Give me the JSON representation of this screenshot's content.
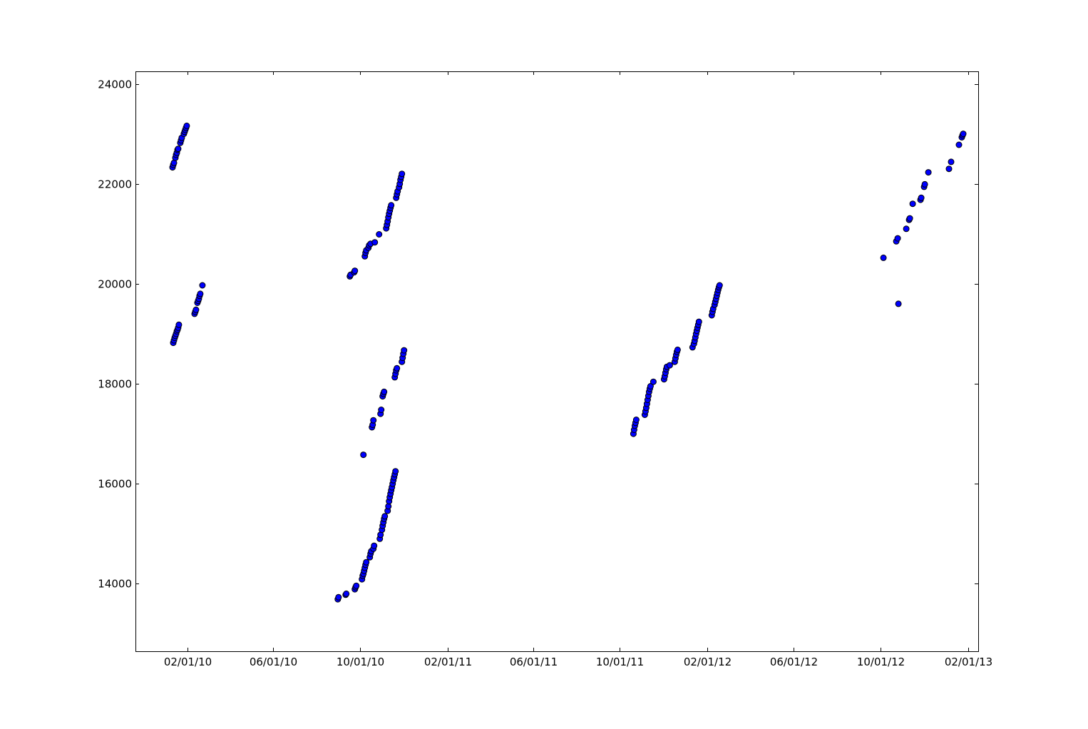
{
  "colors": {
    "marker_fill": "#0000ff",
    "marker_edge": "#000000",
    "axes": "#000000",
    "background": "#ffffff"
  },
  "chart_data": {
    "type": "scatter",
    "title": "",
    "xlabel": "",
    "ylabel": "",
    "x_scale": "date",
    "xlim": [
      "2009-11-20",
      "2013-02-15"
    ],
    "ylim": [
      12650,
      24250
    ],
    "grid": false,
    "legend": "none",
    "x_ticks": [
      "02/01/10",
      "06/01/10",
      "10/01/10",
      "02/01/11",
      "06/01/11",
      "10/01/11",
      "02/01/12",
      "06/01/12",
      "10/01/12",
      "02/01/13"
    ],
    "y_ticks": [
      "14000",
      "16000",
      "18000",
      "20000",
      "22000",
      "24000"
    ],
    "series": [
      {
        "marker": "circle",
        "points": [
          [
            "2010-01-11",
            22330
          ],
          [
            "2010-01-12",
            22380
          ],
          [
            "2010-01-13",
            22420
          ],
          [
            "2010-01-15",
            22520
          ],
          [
            "2010-01-16",
            22580
          ],
          [
            "2010-01-17",
            22620
          ],
          [
            "2010-01-18",
            22680
          ],
          [
            "2010-01-19",
            22700
          ],
          [
            "2010-01-22",
            22820
          ],
          [
            "2010-01-23",
            22870
          ],
          [
            "2010-01-24",
            22920
          ],
          [
            "2010-01-27",
            23000
          ],
          [
            "2010-01-28",
            23040
          ],
          [
            "2010-01-29",
            23080
          ],
          [
            "2010-01-30",
            23120
          ],
          [
            "2010-01-31",
            23160
          ],
          [
            "2010-01-12",
            18820
          ],
          [
            "2010-01-13",
            18870
          ],
          [
            "2010-01-14",
            18920
          ],
          [
            "2010-01-15",
            18960
          ],
          [
            "2010-01-16",
            19000
          ],
          [
            "2010-01-17",
            19050
          ],
          [
            "2010-01-18",
            19080
          ],
          [
            "2010-01-19",
            19120
          ],
          [
            "2010-01-20",
            19180
          ],
          [
            "2010-02-11",
            19400
          ],
          [
            "2010-02-12",
            19440
          ],
          [
            "2010-02-13",
            19480
          ],
          [
            "2010-02-15",
            19620
          ],
          [
            "2010-02-16",
            19660
          ],
          [
            "2010-02-17",
            19700
          ],
          [
            "2010-02-18",
            19760
          ],
          [
            "2010-02-19",
            19800
          ],
          [
            "2010-02-22",
            19970
          ],
          [
            "2010-08-31",
            13690
          ],
          [
            "2010-09-01",
            13730
          ],
          [
            "2010-09-11",
            13780
          ],
          [
            "2010-09-12",
            13800
          ],
          [
            "2010-09-24",
            13890
          ],
          [
            "2010-09-25",
            13930
          ],
          [
            "2010-09-26",
            13960
          ],
          [
            "2010-09-17",
            20150
          ],
          [
            "2010-09-18",
            20180
          ],
          [
            "2010-09-23",
            20230
          ],
          [
            "2010-09-24",
            20260
          ],
          [
            "2010-10-04",
            14090
          ],
          [
            "2010-10-05",
            14160
          ],
          [
            "2010-10-06",
            14200
          ],
          [
            "2010-10-07",
            14260
          ],
          [
            "2010-10-08",
            14320
          ],
          [
            "2010-10-09",
            14380
          ],
          [
            "2010-10-10",
            14430
          ],
          [
            "2010-10-15",
            14530
          ],
          [
            "2010-10-16",
            14600
          ],
          [
            "2010-10-17",
            14650
          ],
          [
            "2010-10-20",
            14700
          ],
          [
            "2010-10-21",
            14760
          ],
          [
            "2010-10-29",
            14900
          ],
          [
            "2010-10-30",
            14980
          ],
          [
            "2010-11-01",
            15080
          ],
          [
            "2010-11-02",
            15160
          ],
          [
            "2010-11-03",
            15230
          ],
          [
            "2010-11-04",
            15300
          ],
          [
            "2010-11-05",
            15350
          ],
          [
            "2010-11-09",
            15460
          ],
          [
            "2010-11-10",
            15550
          ],
          [
            "2010-11-11",
            15650
          ],
          [
            "2010-11-12",
            15730
          ],
          [
            "2010-11-13",
            15800
          ],
          [
            "2010-11-14",
            15870
          ],
          [
            "2010-11-15",
            15930
          ],
          [
            "2010-11-16",
            16000
          ],
          [
            "2010-11-17",
            16070
          ],
          [
            "2010-11-18",
            16130
          ],
          [
            "2010-11-19",
            16190
          ],
          [
            "2010-11-20",
            16250
          ],
          [
            "2010-10-06",
            16580
          ],
          [
            "2010-10-08",
            20550
          ],
          [
            "2010-10-09",
            20620
          ],
          [
            "2010-10-10",
            20670
          ],
          [
            "2010-10-13",
            20720
          ],
          [
            "2010-10-14",
            20770
          ],
          [
            "2010-10-16",
            20800
          ],
          [
            "2010-10-22",
            20830
          ],
          [
            "2010-10-28",
            20990
          ],
          [
            "2010-11-07",
            21110
          ],
          [
            "2010-11-08",
            21180
          ],
          [
            "2010-11-09",
            21250
          ],
          [
            "2010-11-10",
            21330
          ],
          [
            "2010-11-11",
            21400
          ],
          [
            "2010-11-12",
            21460
          ],
          [
            "2010-11-13",
            21520
          ],
          [
            "2010-11-14",
            21570
          ],
          [
            "2010-11-21",
            21720
          ],
          [
            "2010-11-22",
            21790
          ],
          [
            "2010-11-23",
            21850
          ],
          [
            "2010-11-25",
            21930
          ],
          [
            "2010-11-26",
            22000
          ],
          [
            "2010-11-27",
            22080
          ],
          [
            "2010-11-28",
            22140
          ],
          [
            "2010-11-29",
            22200
          ],
          [
            "2010-10-18",
            17130
          ],
          [
            "2010-10-19",
            17180
          ],
          [
            "2010-10-20",
            17270
          ],
          [
            "2010-10-30",
            17400
          ],
          [
            "2010-10-31",
            17480
          ],
          [
            "2010-11-02",
            17750
          ],
          [
            "2010-11-03",
            17800
          ],
          [
            "2010-11-04",
            17840
          ],
          [
            "2010-11-19",
            18130
          ],
          [
            "2010-11-20",
            18200
          ],
          [
            "2010-11-21",
            18270
          ],
          [
            "2010-11-22",
            18310
          ],
          [
            "2010-11-29",
            18440
          ],
          [
            "2010-11-30",
            18520
          ],
          [
            "2010-12-01",
            18600
          ],
          [
            "2010-12-02",
            18670
          ],
          [
            "2011-10-20",
            17000
          ],
          [
            "2011-10-21",
            17080
          ],
          [
            "2011-10-22",
            17160
          ],
          [
            "2011-10-23",
            17220
          ],
          [
            "2011-10-24",
            17280
          ],
          [
            "2011-11-05",
            17380
          ],
          [
            "2011-11-06",
            17450
          ],
          [
            "2011-11-07",
            17520
          ],
          [
            "2011-11-08",
            17600
          ],
          [
            "2011-11-09",
            17680
          ],
          [
            "2011-11-10",
            17760
          ],
          [
            "2011-11-11",
            17840
          ],
          [
            "2011-11-12",
            17900
          ],
          [
            "2011-11-13",
            17950
          ],
          [
            "2011-11-17",
            18040
          ],
          [
            "2011-12-02",
            18090
          ],
          [
            "2011-12-03",
            18150
          ],
          [
            "2011-12-04",
            18220
          ],
          [
            "2011-12-05",
            18290
          ],
          [
            "2011-12-06",
            18340
          ],
          [
            "2011-12-10",
            18370
          ],
          [
            "2011-12-17",
            18440
          ],
          [
            "2011-12-18",
            18510
          ],
          [
            "2011-12-19",
            18580
          ],
          [
            "2011-12-20",
            18640
          ],
          [
            "2011-12-21",
            18680
          ],
          [
            "2012-01-11",
            18730
          ],
          [
            "2012-01-13",
            18800
          ],
          [
            "2012-01-14",
            18860
          ],
          [
            "2012-01-15",
            18930
          ],
          [
            "2012-01-16",
            19000
          ],
          [
            "2012-01-17",
            19060
          ],
          [
            "2012-01-18",
            19120
          ],
          [
            "2012-01-19",
            19180
          ],
          [
            "2012-01-20",
            19240
          ],
          [
            "2012-02-07",
            19370
          ],
          [
            "2012-02-08",
            19440
          ],
          [
            "2012-02-09",
            19500
          ],
          [
            "2012-02-11",
            19580
          ],
          [
            "2012-02-12",
            19640
          ],
          [
            "2012-02-13",
            19700
          ],
          [
            "2012-02-14",
            19760
          ],
          [
            "2012-02-15",
            19820
          ],
          [
            "2012-02-16",
            19880
          ],
          [
            "2012-02-17",
            19930
          ],
          [
            "2012-02-18",
            19970
          ],
          [
            "2012-10-05",
            20520
          ],
          [
            "2012-10-23",
            20850
          ],
          [
            "2012-10-25",
            20910
          ],
          [
            "2012-10-26",
            19600
          ],
          [
            "2012-11-06",
            21100
          ],
          [
            "2012-11-10",
            21280
          ],
          [
            "2012-11-11",
            21310
          ],
          [
            "2012-11-15",
            21600
          ],
          [
            "2012-11-26",
            21680
          ],
          [
            "2012-11-27",
            21720
          ],
          [
            "2012-12-01",
            21940
          ],
          [
            "2012-12-02",
            21990
          ],
          [
            "2012-12-07",
            22230
          ],
          [
            "2013-01-05",
            22300
          ],
          [
            "2013-01-08",
            22440
          ],
          [
            "2013-01-19",
            22780
          ],
          [
            "2013-01-23",
            22930
          ],
          [
            "2013-01-24",
            22970
          ],
          [
            "2013-01-25",
            23000
          ]
        ]
      }
    ]
  }
}
